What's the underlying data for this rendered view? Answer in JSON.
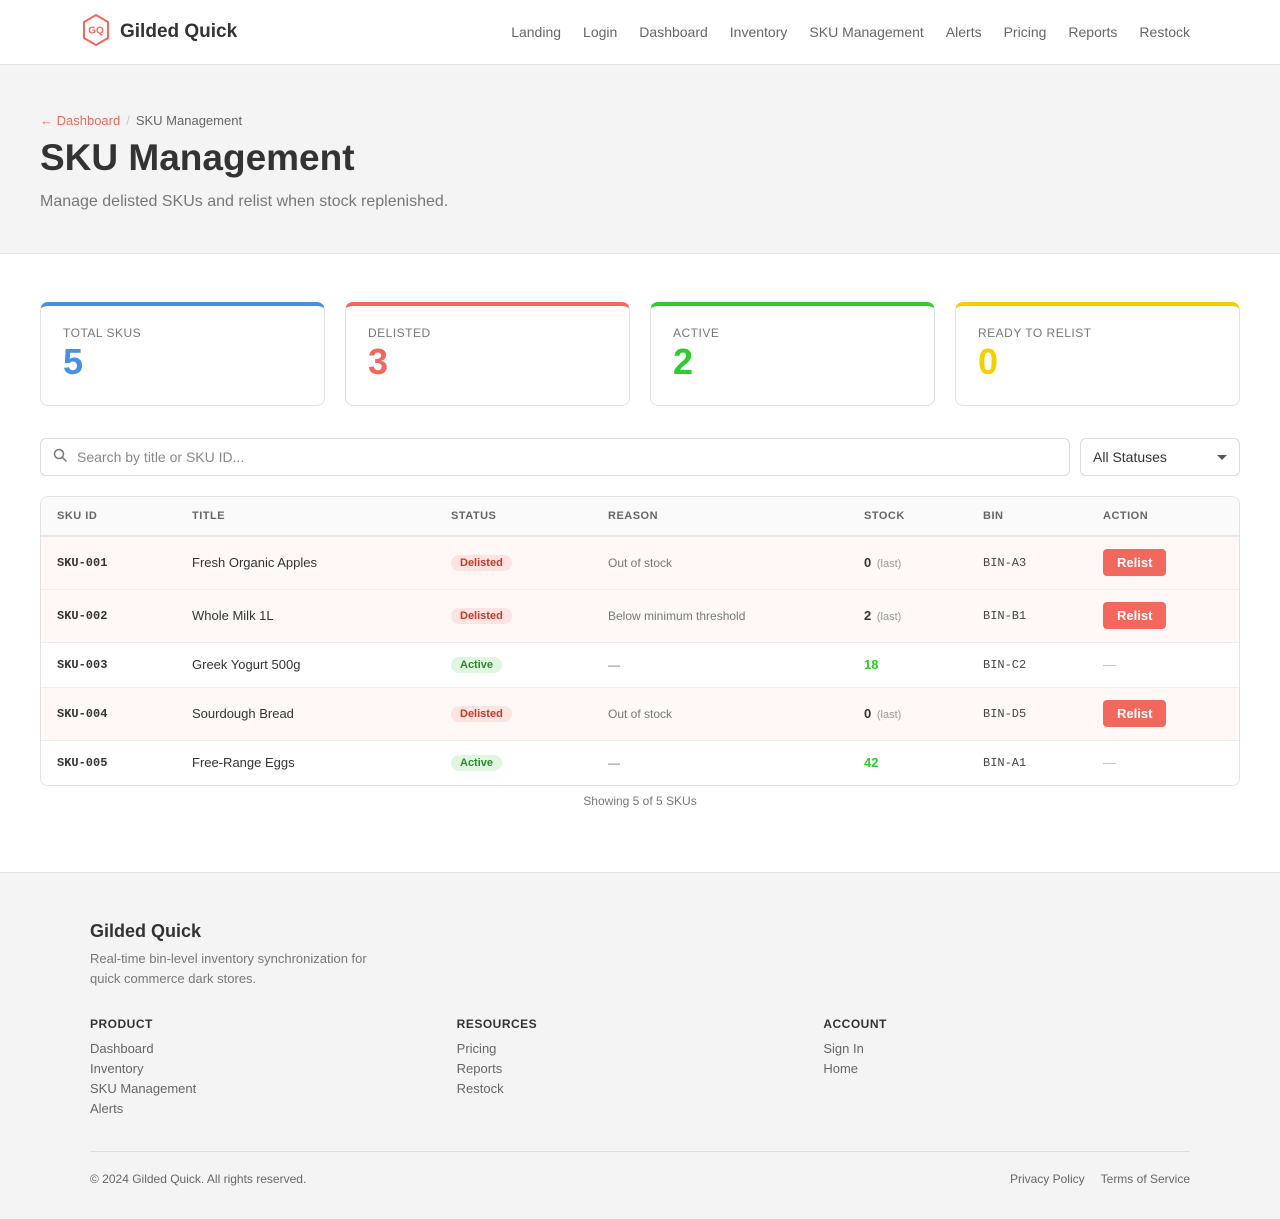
{
  "header": {
    "logo_text": "GQ",
    "brand": "Gilded Quick",
    "nav": [
      "Landing",
      "Login",
      "Dashboard",
      "Inventory",
      "SKU Management",
      "Alerts",
      "Pricing",
      "Reports",
      "Restock"
    ]
  },
  "hero": {
    "breadcrumb_back": "← Dashboard",
    "breadcrumb_sep": "/",
    "breadcrumb_current": "SKU Management",
    "title": "SKU Management",
    "subtitle": "Manage delisted SKUs and relist when stock replenished."
  },
  "stats": [
    {
      "label": "TOTAL SKUS",
      "value": "5",
      "color": "#4a90e2"
    },
    {
      "label": "DELISTED",
      "value": "3",
      "color": "#f2685d"
    },
    {
      "label": "ACTIVE",
      "value": "2",
      "color": "#2ecc2e"
    },
    {
      "label": "READY TO RELIST",
      "value": "0",
      "color": "#f5d000"
    }
  ],
  "filters": {
    "search_placeholder": "Search by title or SKU ID...",
    "status_selected": "All Statuses"
  },
  "table": {
    "columns": [
      "SKU ID",
      "TITLE",
      "STATUS",
      "REASON",
      "STOCK",
      "BIN",
      "ACTION"
    ],
    "rows": [
      {
        "sku": "SKU-001",
        "title": "Fresh Organic Apples",
        "status": "Delisted",
        "reason": "Out of stock",
        "stock": "0",
        "stock_note": "(last)",
        "bin": "BIN-A3",
        "action": "Relist"
      },
      {
        "sku": "SKU-002",
        "title": "Whole Milk 1L",
        "status": "Delisted",
        "reason": "Below minimum threshold",
        "stock": "2",
        "stock_note": "(last)",
        "bin": "BIN-B1",
        "action": "Relist"
      },
      {
        "sku": "SKU-003",
        "title": "Greek Yogurt 500g",
        "status": "Active",
        "reason": "—",
        "stock": "18",
        "stock_note": "",
        "bin": "BIN-C2",
        "action": "—"
      },
      {
        "sku": "SKU-004",
        "title": "Sourdough Bread",
        "status": "Delisted",
        "reason": "Out of stock",
        "stock": "0",
        "stock_note": "(last)",
        "bin": "BIN-D5",
        "action": "Relist"
      },
      {
        "sku": "SKU-005",
        "title": "Free-Range Eggs",
        "status": "Active",
        "reason": "—",
        "stock": "42",
        "stock_note": "",
        "bin": "BIN-A1",
        "action": "—"
      }
    ],
    "count_text": "Showing 5 of 5 SKUs"
  },
  "footer": {
    "brand": "Gilded Quick",
    "tagline": "Real-time bin-level inventory synchronization for quick commerce dark stores.",
    "columns": [
      {
        "heading": "PRODUCT",
        "links": [
          "Dashboard",
          "Inventory",
          "SKU Management",
          "Alerts"
        ]
      },
      {
        "heading": "RESOURCES",
        "links": [
          "Pricing",
          "Reports",
          "Restock"
        ]
      },
      {
        "heading": "ACCOUNT",
        "links": [
          "Sign In",
          "Home"
        ]
      }
    ],
    "copyright": "© 2024 Gilded Quick. All rights reserved.",
    "legal": [
      "Privacy Policy",
      "Terms of Service"
    ]
  },
  "colors": {
    "accent": "#f2685d",
    "active_green": "#2ecc2e",
    "delisted_text": "#333333"
  }
}
